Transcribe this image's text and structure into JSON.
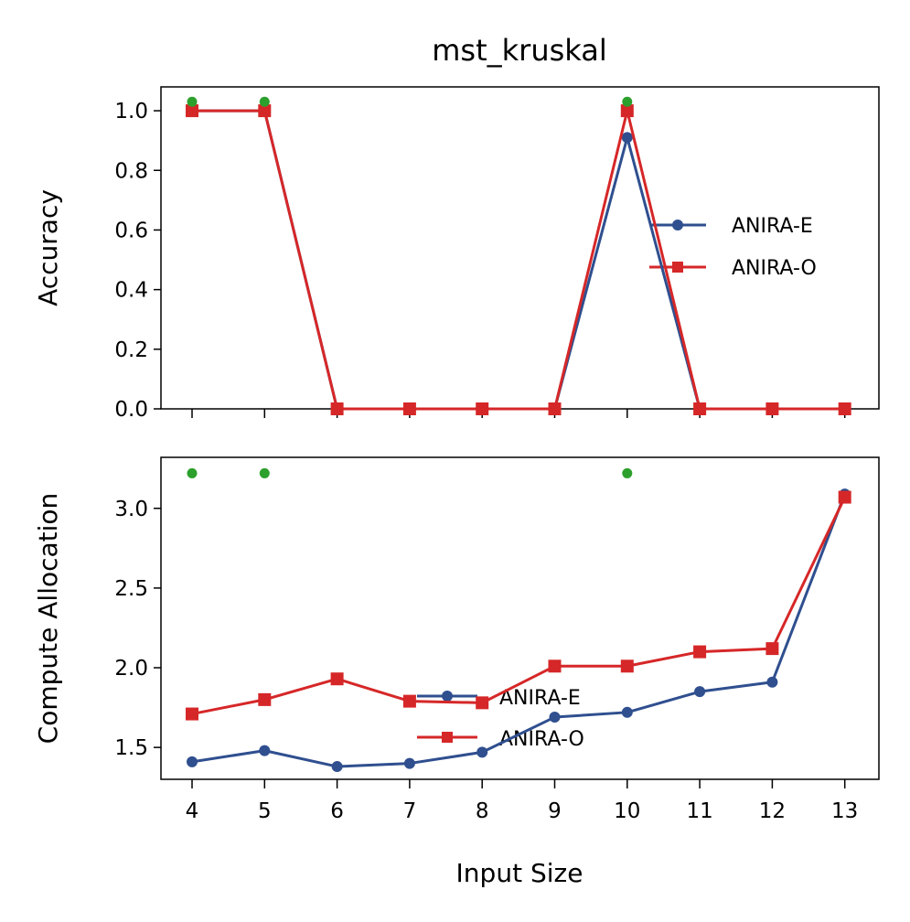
{
  "chart_data": [
    {
      "type": "line",
      "title": "mst_kruskal",
      "xlabel": "",
      "ylabel": "Accuracy",
      "x": [
        4,
        5,
        6,
        7,
        8,
        9,
        10,
        11,
        12,
        13
      ],
      "xticks": [
        "4",
        "5",
        "6",
        "7",
        "8",
        "9",
        "10",
        "11",
        "12",
        "13"
      ],
      "show_xtick_labels": false,
      "ylim": [
        0.0,
        1.08
      ],
      "yticks": [
        "0.0",
        "0.2",
        "0.4",
        "0.6",
        "0.8",
        "1.0"
      ],
      "ytick_values": [
        0.0,
        0.2,
        0.4,
        0.6,
        0.8,
        1.0
      ],
      "series": [
        {
          "name": "ANIRA-E",
          "color": "#2f4f8f",
          "marker": "circle",
          "values": [
            1.0,
            1.0,
            0.0,
            0.0,
            0.0,
            0.0,
            0.91,
            0.0,
            0.0,
            0.0
          ]
        },
        {
          "name": "ANIRA-O",
          "color": "#d62728",
          "marker": "square",
          "values": [
            1.0,
            1.0,
            0.0,
            0.0,
            0.0,
            0.0,
            1.0,
            0.0,
            0.0,
            0.0
          ]
        }
      ],
      "highlight_points": {
        "color": "#2ca02c",
        "x": [
          4,
          5,
          10
        ],
        "y": 1.03
      },
      "legend": {
        "position": "center-right",
        "entries": [
          "ANIRA-E",
          "ANIRA-O"
        ]
      }
    },
    {
      "type": "line",
      "title": "",
      "xlabel": "Input Size",
      "ylabel": "Compute Allocation",
      "x": [
        4,
        5,
        6,
        7,
        8,
        9,
        10,
        11,
        12,
        13
      ],
      "xticks": [
        "4",
        "5",
        "6",
        "7",
        "8",
        "9",
        "10",
        "11",
        "12",
        "13"
      ],
      "show_xtick_labels": true,
      "ylim": [
        1.3,
        3.32
      ],
      "yticks": [
        "1.5",
        "2.0",
        "2.5",
        "3.0"
      ],
      "ytick_values": [
        1.5,
        2.0,
        2.5,
        3.0
      ],
      "series": [
        {
          "name": "ANIRA-E",
          "color": "#2f4f8f",
          "marker": "circle",
          "values": [
            1.41,
            1.48,
            1.38,
            1.4,
            1.47,
            1.69,
            1.72,
            1.85,
            1.91,
            3.09
          ]
        },
        {
          "name": "ANIRA-O",
          "color": "#d62728",
          "marker": "square",
          "values": [
            1.71,
            1.8,
            1.93,
            1.79,
            1.78,
            2.01,
            2.01,
            2.1,
            2.12,
            3.07
          ]
        }
      ],
      "highlight_points": {
        "color": "#2ca02c",
        "x": [
          4,
          5,
          10
        ],
        "y": 3.22
      },
      "legend": {
        "position": "lower-center",
        "entries": [
          "ANIRA-E",
          "ANIRA-O"
        ]
      }
    }
  ]
}
